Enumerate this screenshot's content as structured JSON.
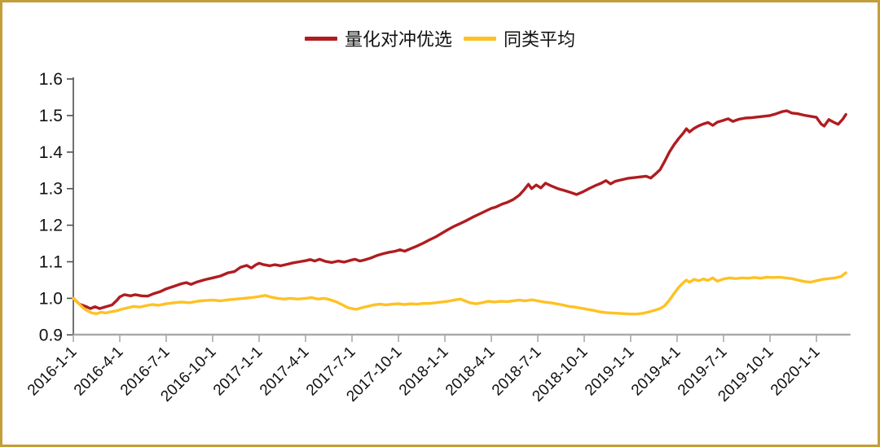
{
  "page": {
    "background_color": "#FFFFFF",
    "border_color": "#C49E3B"
  },
  "legend": {
    "series1_label": "量化对冲优选",
    "series2_label": "同类平均"
  },
  "chart_data": {
    "type": "line",
    "title": "",
    "xlabel": "",
    "ylabel": "",
    "grid": false,
    "legend_position": "top-center",
    "ylim": [
      0.9,
      1.6
    ],
    "y_tick_labels": [
      "0.9",
      "1.0",
      "1.1",
      "1.2",
      "1.3",
      "1.4",
      "1.5",
      "1.6"
    ],
    "x_tick_labels": [
      "2016-1-1",
      "2016-4-1",
      "2016-7-1",
      "2016-10-1",
      "2017-1-1",
      "2017-4-1",
      "2017-7-1",
      "2017-10-1",
      "2018-1-1",
      "2018-4-1",
      "2018-7-1",
      "2018-10-1",
      "2019-1-1",
      "2019-4-1",
      "2019-7-1",
      "2019-10-1",
      "2020-1-1"
    ],
    "x_tick_positions_months": [
      0,
      3,
      6,
      9,
      12,
      15,
      18,
      21,
      24,
      27,
      30,
      33,
      36,
      39,
      42,
      45,
      48
    ],
    "x_unit": "months since 2016-01-01",
    "xlim_months": [
      0,
      50.2
    ],
    "axis_colors": {
      "x_axis": "#A9A9A9",
      "y_axis": "#4D4D4D"
    },
    "series": [
      {
        "name": "量化对冲优选",
        "color": "#B01C20",
        "points": [
          [
            0,
            1.0
          ],
          [
            0.4,
            0.984
          ],
          [
            0.8,
            0.978
          ],
          [
            1.1,
            0.972
          ],
          [
            1.4,
            0.977
          ],
          [
            1.7,
            0.972
          ],
          [
            2.1,
            0.977
          ],
          [
            2.5,
            0.982
          ],
          [
            2.8,
            0.994
          ],
          [
            3.0,
            1.004
          ],
          [
            3.3,
            1.01
          ],
          [
            3.7,
            1.007
          ],
          [
            4.0,
            1.01
          ],
          [
            4.4,
            1.007
          ],
          [
            4.8,
            1.006
          ],
          [
            5.2,
            1.013
          ],
          [
            5.6,
            1.018
          ],
          [
            6.0,
            1.026
          ],
          [
            6.5,
            1.033
          ],
          [
            7.0,
            1.04
          ],
          [
            7.3,
            1.043
          ],
          [
            7.6,
            1.038
          ],
          [
            8.0,
            1.045
          ],
          [
            8.5,
            1.051
          ],
          [
            9.0,
            1.056
          ],
          [
            9.5,
            1.061
          ],
          [
            10.0,
            1.07
          ],
          [
            10.4,
            1.073
          ],
          [
            10.8,
            1.085
          ],
          [
            11.2,
            1.09
          ],
          [
            11.5,
            1.083
          ],
          [
            11.8,
            1.092
          ],
          [
            12.0,
            1.096
          ],
          [
            12.3,
            1.092
          ],
          [
            12.7,
            1.089
          ],
          [
            13.0,
            1.092
          ],
          [
            13.4,
            1.089
          ],
          [
            13.8,
            1.093
          ],
          [
            14.2,
            1.097
          ],
          [
            14.6,
            1.1
          ],
          [
            15.0,
            1.103
          ],
          [
            15.3,
            1.106
          ],
          [
            15.6,
            1.102
          ],
          [
            15.9,
            1.107
          ],
          [
            16.3,
            1.101
          ],
          [
            16.7,
            1.098
          ],
          [
            17.1,
            1.102
          ],
          [
            17.5,
            1.099
          ],
          [
            17.9,
            1.104
          ],
          [
            18.2,
            1.107
          ],
          [
            18.5,
            1.102
          ],
          [
            18.8,
            1.105
          ],
          [
            19.2,
            1.11
          ],
          [
            19.6,
            1.117
          ],
          [
            20.0,
            1.122
          ],
          [
            20.4,
            1.126
          ],
          [
            20.8,
            1.129
          ],
          [
            21.1,
            1.133
          ],
          [
            21.4,
            1.129
          ],
          [
            21.8,
            1.136
          ],
          [
            22.2,
            1.143
          ],
          [
            22.6,
            1.151
          ],
          [
            23.0,
            1.16
          ],
          [
            23.4,
            1.168
          ],
          [
            23.8,
            1.178
          ],
          [
            24.2,
            1.188
          ],
          [
            24.6,
            1.197
          ],
          [
            25.0,
            1.205
          ],
          [
            25.4,
            1.213
          ],
          [
            25.8,
            1.222
          ],
          [
            26.2,
            1.23
          ],
          [
            26.6,
            1.238
          ],
          [
            27.0,
            1.246
          ],
          [
            27.3,
            1.25
          ],
          [
            27.7,
            1.258
          ],
          [
            28.0,
            1.262
          ],
          [
            28.4,
            1.27
          ],
          [
            28.8,
            1.282
          ],
          [
            29.1,
            1.296
          ],
          [
            29.4,
            1.312
          ],
          [
            29.6,
            1.3
          ],
          [
            29.9,
            1.31
          ],
          [
            30.2,
            1.302
          ],
          [
            30.5,
            1.315
          ],
          [
            30.9,
            1.307
          ],
          [
            31.3,
            1.3
          ],
          [
            31.7,
            1.295
          ],
          [
            32.1,
            1.29
          ],
          [
            32.5,
            1.284
          ],
          [
            32.9,
            1.291
          ],
          [
            33.3,
            1.3
          ],
          [
            33.7,
            1.308
          ],
          [
            34.1,
            1.315
          ],
          [
            34.4,
            1.322
          ],
          [
            34.7,
            1.313
          ],
          [
            35.0,
            1.32
          ],
          [
            35.4,
            1.324
          ],
          [
            35.8,
            1.328
          ],
          [
            36.2,
            1.33
          ],
          [
            36.6,
            1.332
          ],
          [
            37.0,
            1.334
          ],
          [
            37.3,
            1.329
          ],
          [
            37.6,
            1.34
          ],
          [
            37.9,
            1.352
          ],
          [
            38.2,
            1.375
          ],
          [
            38.5,
            1.4
          ],
          [
            38.8,
            1.42
          ],
          [
            39.1,
            1.437
          ],
          [
            39.4,
            1.452
          ],
          [
            39.6,
            1.464
          ],
          [
            39.8,
            1.455
          ],
          [
            40.1,
            1.465
          ],
          [
            40.4,
            1.472
          ],
          [
            40.7,
            1.477
          ],
          [
            41.0,
            1.481
          ],
          [
            41.3,
            1.473
          ],
          [
            41.6,
            1.482
          ],
          [
            42.0,
            1.487
          ],
          [
            42.3,
            1.491
          ],
          [
            42.6,
            1.484
          ],
          [
            43.0,
            1.49
          ],
          [
            43.4,
            1.493
          ],
          [
            43.8,
            1.494
          ],
          [
            44.2,
            1.496
          ],
          [
            44.6,
            1.498
          ],
          [
            45.0,
            1.5
          ],
          [
            45.4,
            1.505
          ],
          [
            45.8,
            1.511
          ],
          [
            46.1,
            1.513
          ],
          [
            46.4,
            1.507
          ],
          [
            46.8,
            1.505
          ],
          [
            47.2,
            1.501
          ],
          [
            47.6,
            1.498
          ],
          [
            48.0,
            1.495
          ],
          [
            48.3,
            1.477
          ],
          [
            48.5,
            1.471
          ],
          [
            48.8,
            1.489
          ],
          [
            49.1,
            1.482
          ],
          [
            49.4,
            1.476
          ],
          [
            49.7,
            1.49
          ],
          [
            49.9,
            1.503
          ]
        ]
      },
      {
        "name": "同类平均",
        "color": "#FFC123",
        "points": [
          [
            0,
            1.0
          ],
          [
            0.3,
            0.988
          ],
          [
            0.6,
            0.975
          ],
          [
            0.9,
            0.966
          ],
          [
            1.2,
            0.96
          ],
          [
            1.5,
            0.958
          ],
          [
            1.8,
            0.962
          ],
          [
            2.1,
            0.96
          ],
          [
            2.4,
            0.963
          ],
          [
            2.8,
            0.966
          ],
          [
            3.1,
            0.97
          ],
          [
            3.5,
            0.974
          ],
          [
            3.9,
            0.978
          ],
          [
            4.3,
            0.976
          ],
          [
            4.7,
            0.98
          ],
          [
            5.1,
            0.983
          ],
          [
            5.5,
            0.981
          ],
          [
            6.0,
            0.985
          ],
          [
            6.5,
            0.988
          ],
          [
            7.0,
            0.99
          ],
          [
            7.5,
            0.988
          ],
          [
            8.0,
            0.992
          ],
          [
            8.5,
            0.994
          ],
          [
            9.0,
            0.995
          ],
          [
            9.5,
            0.993
          ],
          [
            10.0,
            0.996
          ],
          [
            10.5,
            0.998
          ],
          [
            11.0,
            1.0
          ],
          [
            11.5,
            1.002
          ],
          [
            12.0,
            1.005
          ],
          [
            12.4,
            1.008
          ],
          [
            12.8,
            1.003
          ],
          [
            13.2,
            1.0
          ],
          [
            13.6,
            0.998
          ],
          [
            14.0,
            1.0
          ],
          [
            14.5,
            0.998
          ],
          [
            15.0,
            1.0
          ],
          [
            15.4,
            1.002
          ],
          [
            15.8,
            0.998
          ],
          [
            16.2,
            1.0
          ],
          [
            16.6,
            0.996
          ],
          [
            17.0,
            0.99
          ],
          [
            17.4,
            0.982
          ],
          [
            17.7,
            0.975
          ],
          [
            18.0,
            0.972
          ],
          [
            18.3,
            0.97
          ],
          [
            18.6,
            0.974
          ],
          [
            19.0,
            0.978
          ],
          [
            19.4,
            0.982
          ],
          [
            19.8,
            0.984
          ],
          [
            20.2,
            0.982
          ],
          [
            20.6,
            0.984
          ],
          [
            21.0,
            0.985
          ],
          [
            21.4,
            0.983
          ],
          [
            21.8,
            0.985
          ],
          [
            22.2,
            0.984
          ],
          [
            22.6,
            0.986
          ],
          [
            23.0,
            0.986
          ],
          [
            23.4,
            0.988
          ],
          [
            23.8,
            0.99
          ],
          [
            24.2,
            0.992
          ],
          [
            24.6,
            0.995
          ],
          [
            25.0,
            0.998
          ],
          [
            25.3,
            0.993
          ],
          [
            25.6,
            0.988
          ],
          [
            26.0,
            0.985
          ],
          [
            26.4,
            0.988
          ],
          [
            26.8,
            0.992
          ],
          [
            27.2,
            0.99
          ],
          [
            27.6,
            0.992
          ],
          [
            28.0,
            0.991
          ],
          [
            28.4,
            0.993
          ],
          [
            28.8,
            0.995
          ],
          [
            29.2,
            0.993
          ],
          [
            29.6,
            0.996
          ],
          [
            30.0,
            0.993
          ],
          [
            30.4,
            0.99
          ],
          [
            30.8,
            0.988
          ],
          [
            31.2,
            0.985
          ],
          [
            31.6,
            0.982
          ],
          [
            32.0,
            0.978
          ],
          [
            32.4,
            0.976
          ],
          [
            32.8,
            0.973
          ],
          [
            33.2,
            0.97
          ],
          [
            33.6,
            0.967
          ],
          [
            34.0,
            0.963
          ],
          [
            34.4,
            0.961
          ],
          [
            34.8,
            0.96
          ],
          [
            35.2,
            0.959
          ],
          [
            35.6,
            0.958
          ],
          [
            36.0,
            0.957
          ],
          [
            36.4,
            0.957
          ],
          [
            36.8,
            0.959
          ],
          [
            37.2,
            0.963
          ],
          [
            37.6,
            0.968
          ],
          [
            37.9,
            0.972
          ],
          [
            38.2,
            0.98
          ],
          [
            38.5,
            0.995
          ],
          [
            38.8,
            1.013
          ],
          [
            39.1,
            1.03
          ],
          [
            39.4,
            1.043
          ],
          [
            39.6,
            1.05
          ],
          [
            39.8,
            1.044
          ],
          [
            40.1,
            1.052
          ],
          [
            40.4,
            1.048
          ],
          [
            40.7,
            1.053
          ],
          [
            41.0,
            1.049
          ],
          [
            41.3,
            1.056
          ],
          [
            41.6,
            1.047
          ],
          [
            42.0,
            1.053
          ],
          [
            42.4,
            1.056
          ],
          [
            42.8,
            1.054
          ],
          [
            43.2,
            1.056
          ],
          [
            43.6,
            1.055
          ],
          [
            44.0,
            1.057
          ],
          [
            44.4,
            1.055
          ],
          [
            44.8,
            1.058
          ],
          [
            45.2,
            1.057
          ],
          [
            45.6,
            1.058
          ],
          [
            46.0,
            1.056
          ],
          [
            46.4,
            1.054
          ],
          [
            46.8,
            1.05
          ],
          [
            47.2,
            1.046
          ],
          [
            47.6,
            1.044
          ],
          [
            48.0,
            1.048
          ],
          [
            48.4,
            1.052
          ],
          [
            48.8,
            1.054
          ],
          [
            49.2,
            1.056
          ],
          [
            49.6,
            1.06
          ],
          [
            49.9,
            1.07
          ]
        ]
      }
    ]
  }
}
